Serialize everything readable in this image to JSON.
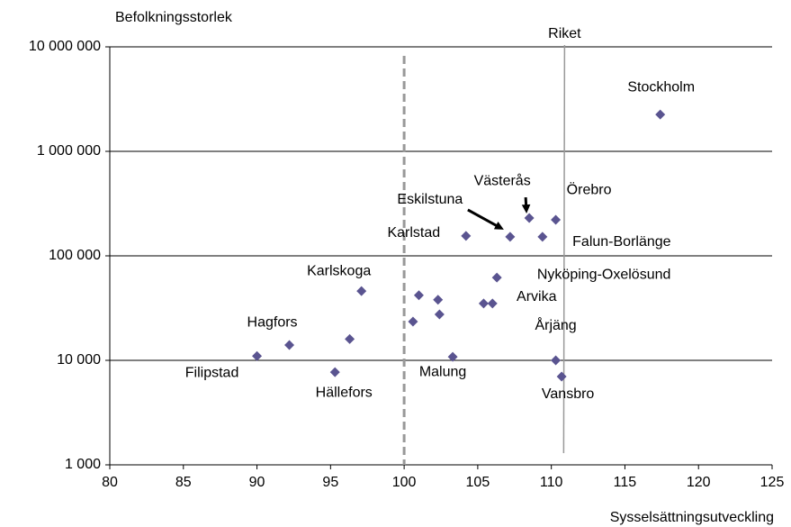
{
  "chart_data": {
    "type": "scatter",
    "y_label": "Befolkningsstorlek",
    "x_label": "Sysselsättningsutveckling",
    "log_y": true,
    "grid": true,
    "color": "#5a5490",
    "xlim": [
      80,
      125
    ],
    "xticks": [
      80,
      85,
      90,
      95,
      100,
      105,
      110,
      115,
      120,
      125
    ],
    "ylim": [
      1000,
      10000000
    ],
    "yticks": [
      {
        "value": 1000,
        "label": "1 000"
      },
      {
        "value": 10000,
        "label": "10 000"
      },
      {
        "value": 100000,
        "label": "100 000"
      },
      {
        "value": 1000000,
        "label": "1 000 000"
      },
      {
        "value": 10000000,
        "label": "10 000 000"
      }
    ],
    "x": [
      117.4,
      110.3,
      108.5,
      107.2,
      109.4,
      104.2,
      106.3,
      105.4,
      106.0,
      97.1,
      101.0,
      102.3,
      102.4,
      100.6,
      96.3,
      92.2,
      90.0,
      95.3,
      103.3,
      110.3,
      110.7
    ],
    "values": [
      2250000,
      221000,
      230000,
      152000,
      152000,
      155000,
      62000,
      35000,
      35000,
      46000,
      42000,
      38000,
      27500,
      23500,
      16000,
      14000,
      11000,
      7700,
      10800,
      10000,
      7000
    ],
    "labels": [
      "Stockholm",
      "Örebro",
      "Västerås",
      "Eskilstuna",
      "Falun-Borlänge",
      "Karlstad",
      "Nyköping-Oxelösund",
      null,
      "Arvika",
      "Karlskoga",
      null,
      null,
      null,
      null,
      null,
      "Hagfors",
      "Filipstad",
      "Hällefors",
      "Malung",
      "Årjäng",
      "Vansbro"
    ],
    "reference_lines": [
      {
        "x": 100,
        "style": "dashed"
      },
      {
        "x": 110.9,
        "style": "solid",
        "label": "Riket"
      }
    ]
  }
}
